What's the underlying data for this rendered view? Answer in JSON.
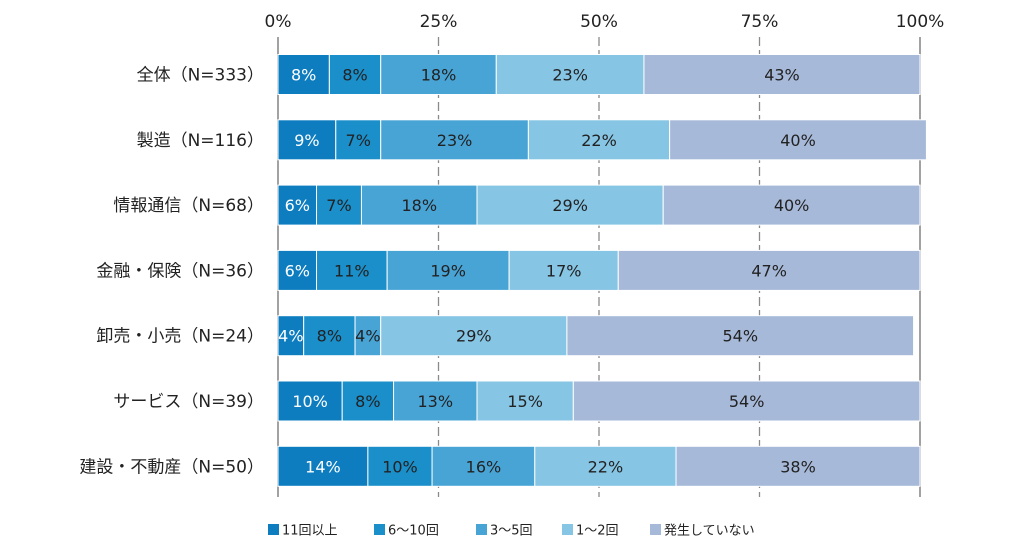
{
  "chart_data": {
    "type": "bar",
    "orientation": "horizontal",
    "stacked": true,
    "xlim": [
      0,
      100
    ],
    "x_ticks": [
      "0%",
      "25%",
      "50%",
      "75%",
      "100%"
    ],
    "x_tick_values": [
      0,
      25,
      50,
      75,
      100
    ],
    "grid": true,
    "legend_position": "bottom",
    "categories": [
      "全体（N=333）",
      "製造（N=116）",
      "情報通信（N=68）",
      "金融・保険（N=36）",
      "卸売・小売（N=24）",
      "サービス（N=39）",
      "建設・不動産（N=50）"
    ],
    "series": [
      {
        "name": "11回以上",
        "color": "#0e7dc0",
        "label_color": "#ffffff",
        "values": [
          8,
          9,
          6,
          6,
          4,
          10,
          14
        ],
        "labels": [
          "8%",
          "9%",
          "6%",
          "6%",
          "4%",
          "10%",
          "14%"
        ]
      },
      {
        "name": "6～10回",
        "color": "#1a8fca",
        "label_color": "#222222",
        "values": [
          8,
          7,
          7,
          11,
          8,
          8,
          10
        ],
        "labels": [
          "8%",
          "7%",
          "7%",
          "11%",
          "8%",
          "8%",
          "10%"
        ]
      },
      {
        "name": "3～5回",
        "color": "#49a4d6",
        "label_color": "#222222",
        "values": [
          18,
          23,
          18,
          19,
          4,
          13,
          16
        ],
        "labels": [
          "18%",
          "23%",
          "18%",
          "19%",
          "4%",
          "13%",
          "16%"
        ]
      },
      {
        "name": "1～2回",
        "color": "#86c5e4",
        "label_color": "#222222",
        "values": [
          23,
          22,
          29,
          17,
          29,
          15,
          22
        ],
        "labels": [
          "23%",
          "22%",
          "29%",
          "17%",
          "29%",
          "15%",
          "22%"
        ]
      },
      {
        "name": "発生していない",
        "color": "#a7b9d9",
        "label_color": "#222222",
        "values": [
          43,
          40,
          40,
          47,
          54,
          54,
          38
        ],
        "labels": [
          "43%",
          "40%",
          "40%",
          "47%",
          "54%",
          "54%",
          "38%"
        ]
      }
    ]
  }
}
